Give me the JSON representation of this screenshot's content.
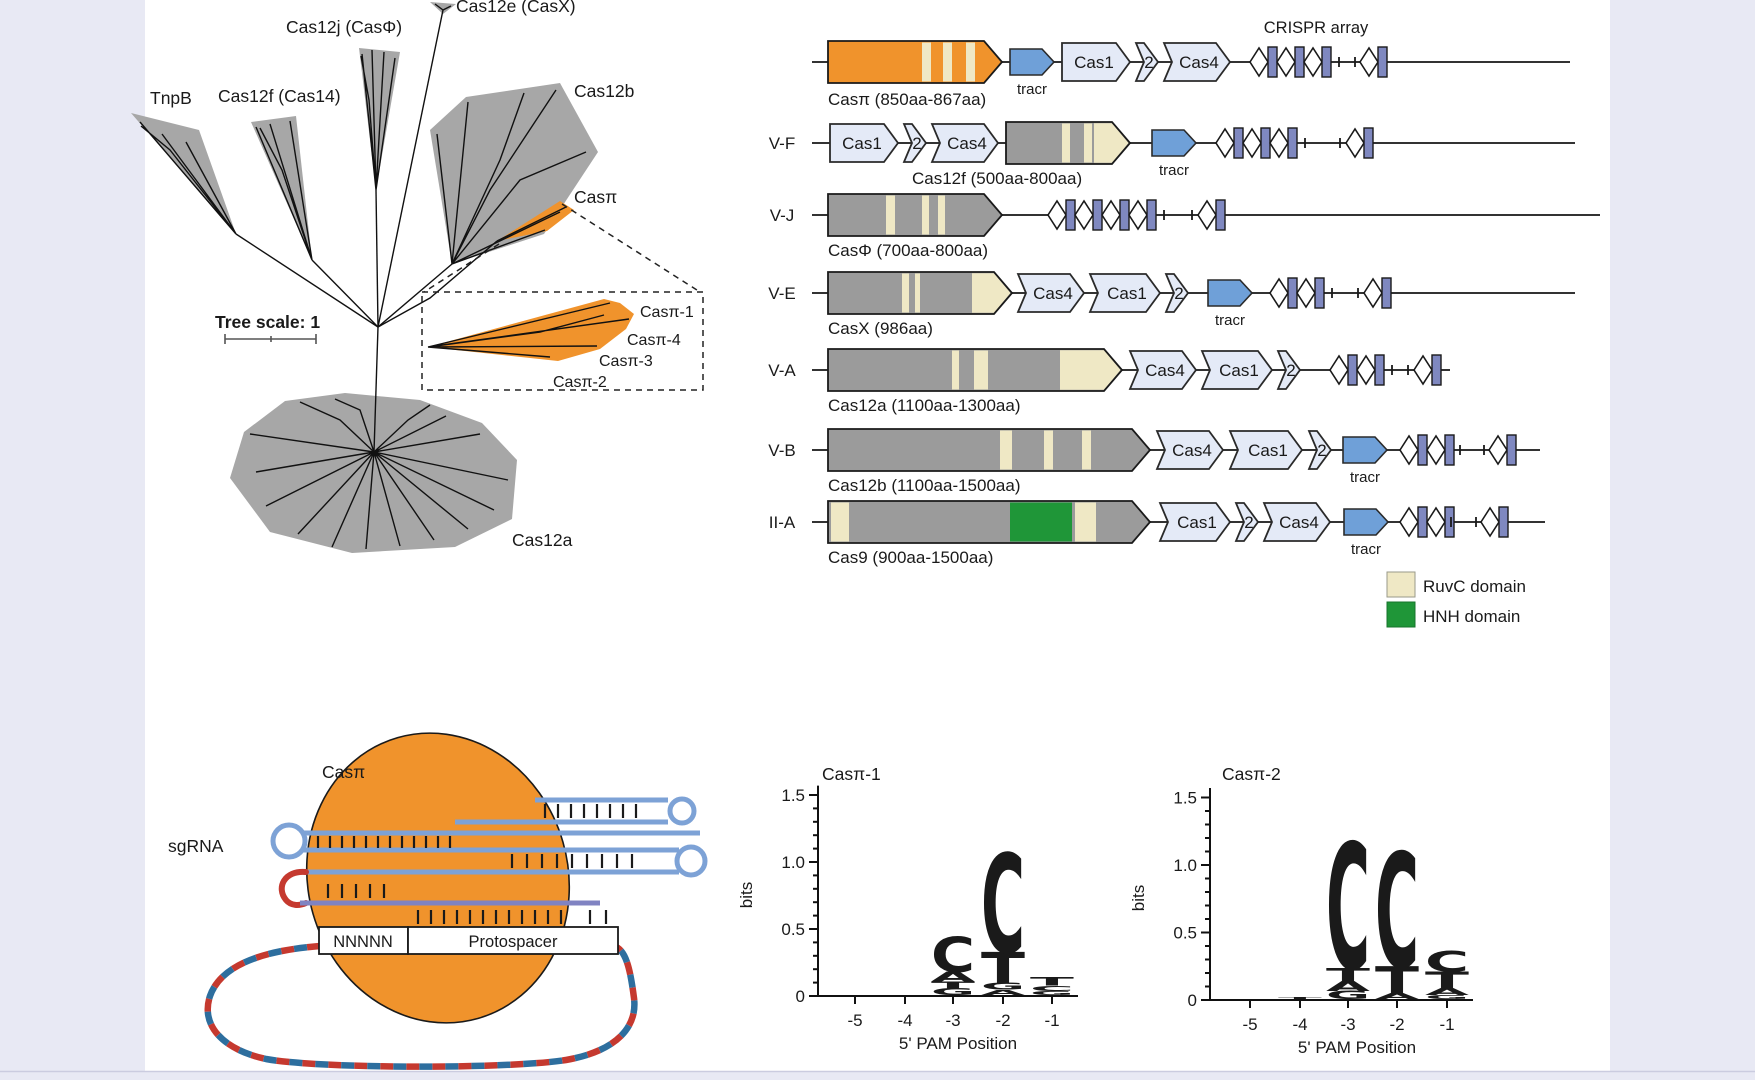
{
  "background": {
    "margin_color": "#E8E9F4",
    "panel_color": "#FFFFFF"
  },
  "tree": {
    "scale_label": "Tree scale: 1",
    "highlight_color": "#F0932C",
    "clade_color": "#A7A7A7",
    "clades": [
      {
        "label": "TnpB"
      },
      {
        "label": "Cas12f (Cas14)"
      },
      {
        "label": "Cas12j (CasΦ)"
      },
      {
        "label": "Cas12e (CasX)"
      },
      {
        "label": "Cas12b"
      },
      {
        "label": "Casπ"
      },
      {
        "label": "Cas12a"
      }
    ],
    "inset_labels": [
      "Casπ-1",
      "Casπ-4",
      "Casπ-3",
      "Casπ-2"
    ]
  },
  "loci": {
    "array_label": "CRISPR array",
    "tracr_label": "tracr",
    "gene_labels": {
      "cas1": "Cas1",
      "cas2": "2",
      "cas4": "Cas4"
    },
    "rows": [
      {
        "type": "",
        "name": "Casπ (850aa-867aa)"
      },
      {
        "type": "V-F",
        "name": "Cas12f (500aa-800aa)"
      },
      {
        "type": "V-J",
        "name": "CasΦ (700aa-800aa)"
      },
      {
        "type": "V-E",
        "name": "CasX (986aa)"
      },
      {
        "type": "V-A",
        "name": "Cas12a (1100aa-1300aa)"
      },
      {
        "type": "V-B",
        "name": "Cas12b (1100aa-1500aa)"
      },
      {
        "type": "II-A",
        "name": "Cas9 (900aa-1500aa)"
      }
    ],
    "legend": [
      {
        "label": "RuvC domain",
        "color": "#EFE8C5"
      },
      {
        "label": "HNH domain",
        "color": "#1F9638"
      }
    ]
  },
  "schematic": {
    "protein_label": "Casπ",
    "sgrna_label": "sgRNA",
    "pam_box": "NNNNN",
    "protospacer_box": "Protospacer"
  },
  "chart_data": [
    {
      "type": "sequence_logo",
      "title": "Casπ-1",
      "xlabel": "5' PAM Position",
      "ylabel": "bits",
      "positions": [
        -5,
        -4,
        -3,
        -2,
        -1
      ],
      "y_ticks": [
        0,
        0.5,
        1.0,
        1.5
      ],
      "ylim": [
        0,
        1.6
      ],
      "colors": {
        "A": "#1FA13B",
        "C": "#2A6CAE",
        "G": "#F5A41D",
        "T": "#E8211C"
      },
      "stacks": [
        [],
        [],
        [
          [
            "G",
            0.05
          ],
          [
            "T",
            0.05
          ],
          [
            "A",
            0.07
          ],
          [
            "C",
            0.26
          ]
        ],
        [
          [
            "A",
            0.04
          ],
          [
            "G",
            0.05
          ],
          [
            "T",
            0.23
          ],
          [
            "C",
            0.73
          ]
        ],
        [
          [
            "G",
            0.03
          ],
          [
            "C",
            0.04
          ],
          [
            "T",
            0.06
          ]
        ]
      ]
    },
    {
      "type": "sequence_logo",
      "title": "Casπ-2",
      "xlabel": "5' PAM Position",
      "ylabel": "bits",
      "positions": [
        -5,
        -4,
        -3,
        -2,
        -1
      ],
      "y_ticks": [
        0,
        0.5,
        1.0,
        1.5
      ],
      "ylim": [
        0,
        1.6
      ],
      "colors": {
        "A": "#1FA13B",
        "C": "#2A6CAE",
        "G": "#F5A41D",
        "T": "#E8211C"
      },
      "stacks": [
        [],
        [
          [
            "T",
            0.015
          ]
        ],
        [
          [
            "G",
            0.06
          ],
          [
            "A",
            0.07
          ],
          [
            "T",
            0.1
          ],
          [
            "C",
            0.92
          ]
        ],
        [
          [
            "A",
            0.04
          ],
          [
            "T",
            0.2
          ],
          [
            "C",
            0.84
          ]
        ],
        [
          [
            "G",
            0.03
          ],
          [
            "A",
            0.05
          ],
          [
            "T",
            0.12
          ],
          [
            "C",
            0.15
          ]
        ]
      ]
    }
  ]
}
